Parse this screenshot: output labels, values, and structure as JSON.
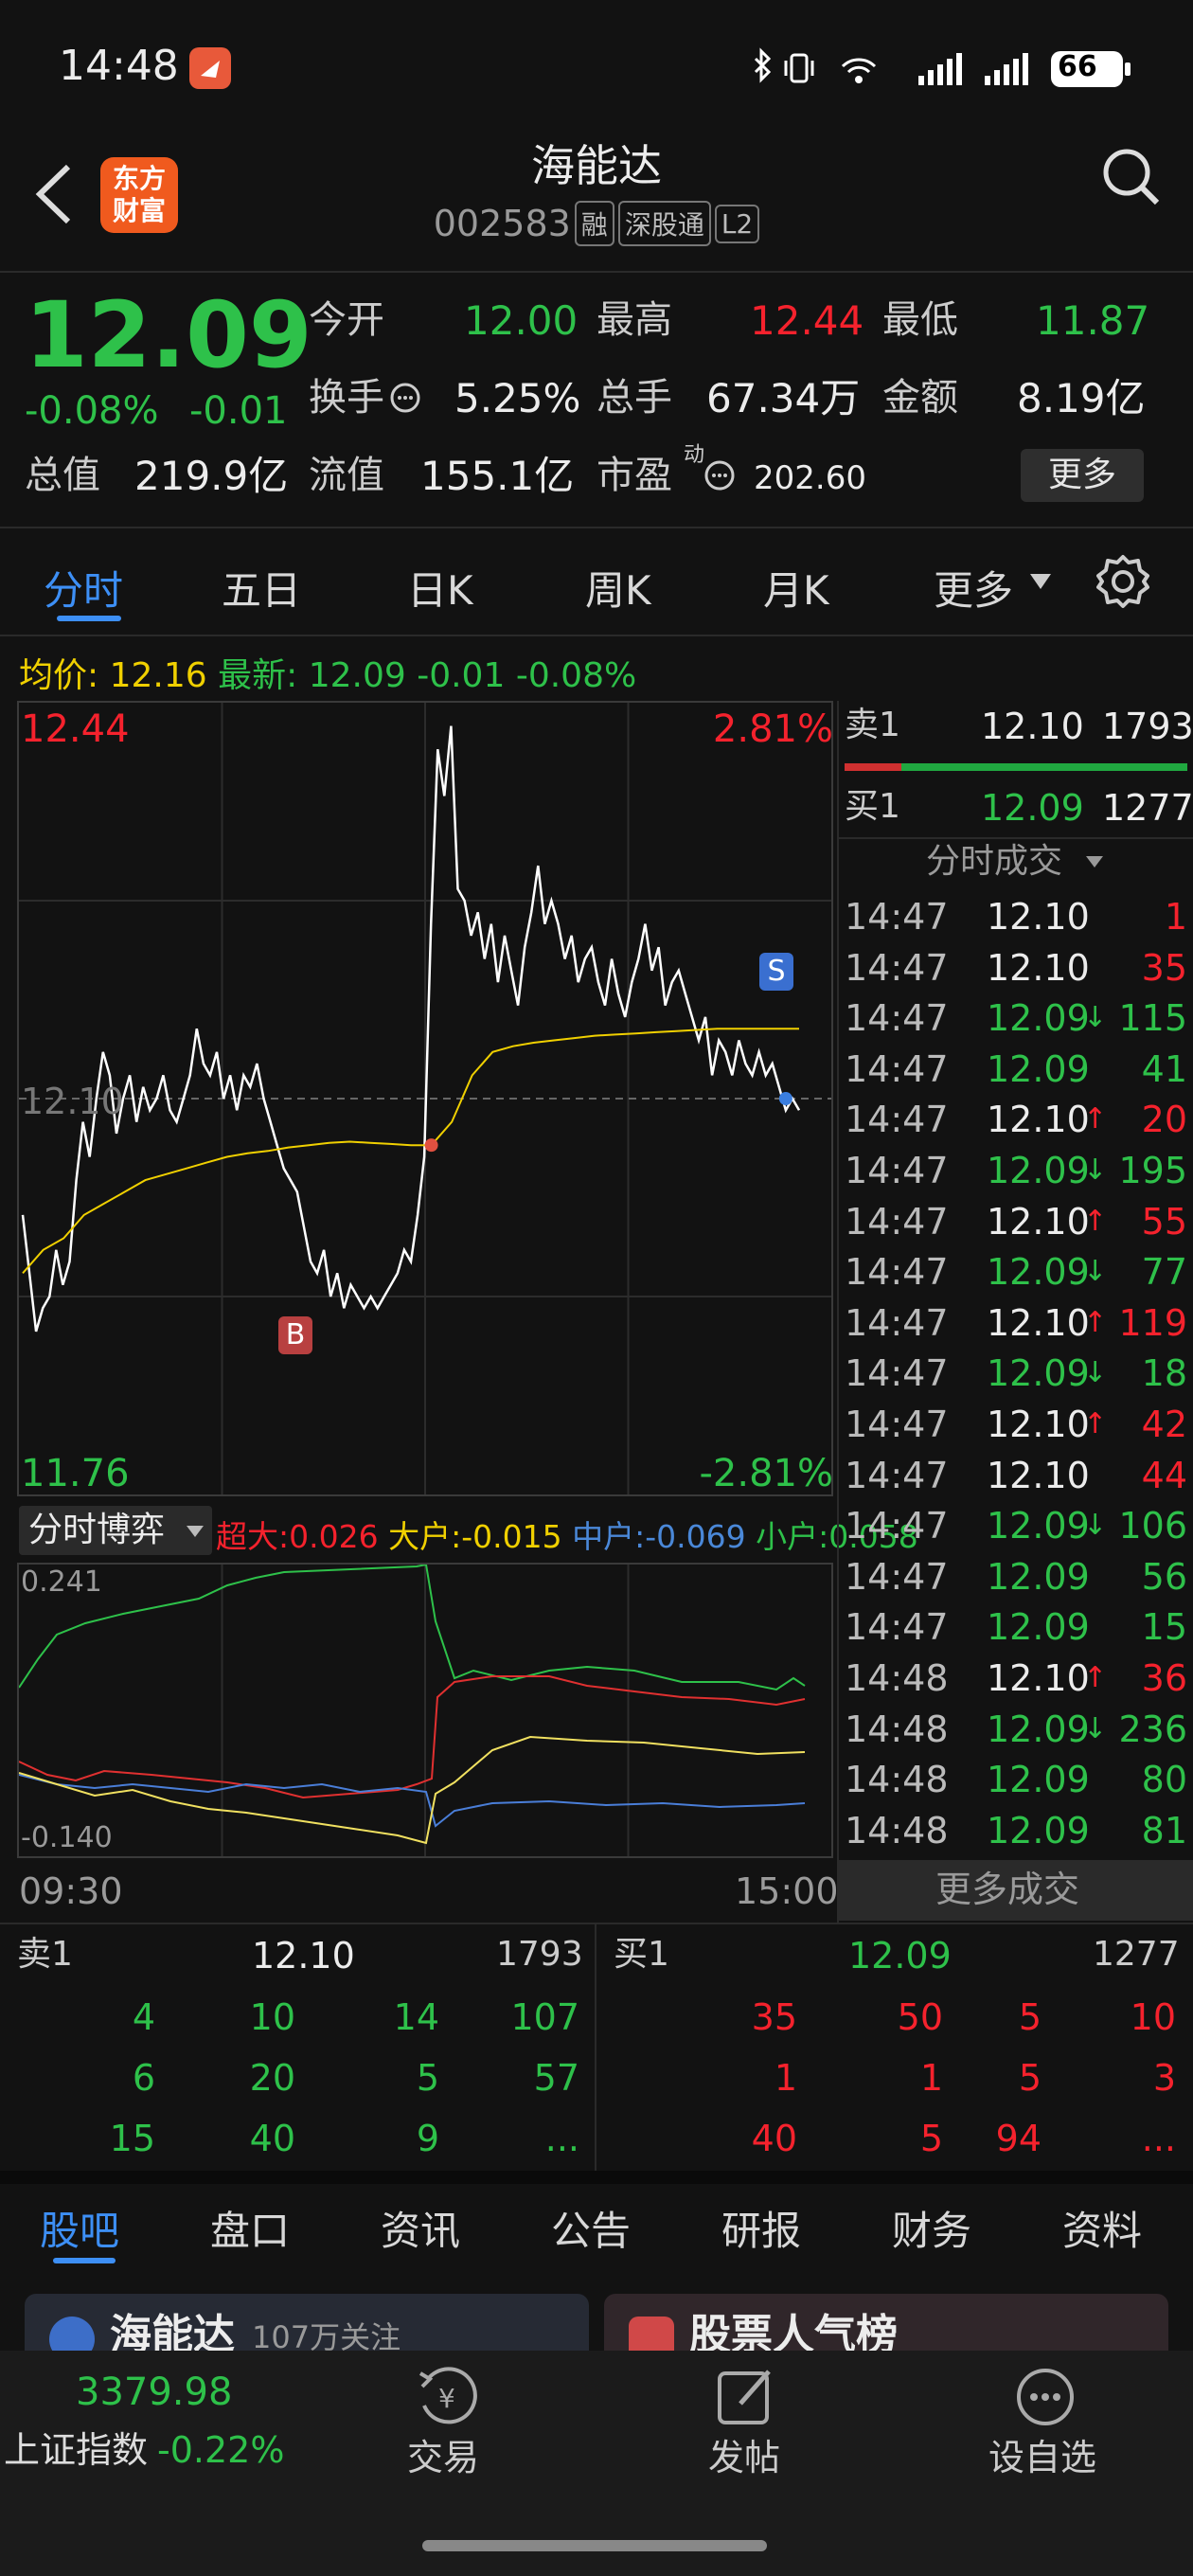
{
  "status_bar": {
    "time": "14:48",
    "battery": "66"
  },
  "header": {
    "title": "海能达",
    "code": "002583",
    "tags": [
      "融",
      "深股通",
      "L2"
    ]
  },
  "quote": {
    "price": "12.09",
    "change_pct": "-0.08%",
    "change": "-0.01",
    "open_label": "今开",
    "open": "12.00",
    "high_label": "最高",
    "high": "12.44",
    "low_label": "最低",
    "low": "11.87",
    "turnover_label": "换手",
    "turnover": "5.25%",
    "volume_label": "总手",
    "volume": "67.34万",
    "amount_label": "金额",
    "amount": "8.19亿",
    "mktcap_label": "总值",
    "mktcap": "219.9亿",
    "float_label": "流值",
    "float": "155.1亿",
    "pe_label": "市盈",
    "pe_sup": "动",
    "pe": "202.60",
    "more_button": "更多"
  },
  "chart_tabs": [
    "分时",
    "五日",
    "日K",
    "周K",
    "月K",
    "更多"
  ],
  "avg_line": {
    "avg_label": "均价:",
    "avg": "12.16",
    "latest_label": "最新:",
    "latest": "12.09",
    "chg": "-0.01",
    "pct": "-0.08%"
  },
  "chart_data": {
    "type": "line",
    "y_max_label": "12.44",
    "y_mid_label": "12.10",
    "y_min_label": "11.76",
    "pct_max_label": "2.81%",
    "pct_min_label": "-2.81%",
    "ylim": [
      11.76,
      12.44
    ],
    "x_start": "09:30",
    "x_end": "15:00",
    "markers": [
      "B",
      "S"
    ],
    "series": [
      {
        "values": [
          12.0,
          11.95,
          11.9,
          11.92,
          11.93,
          11.97,
          11.94,
          11.96,
          12.03,
          12.08,
          12.05,
          12.1,
          12.14,
          12.12,
          12.07,
          12.1,
          12.12,
          12.08,
          12.11,
          12.09,
          12.1,
          12.12,
          12.09,
          12.08,
          12.1,
          12.12,
          12.16,
          12.13,
          12.12,
          12.14,
          12.1,
          12.12,
          12.09,
          12.12,
          12.11,
          12.13,
          12.1,
          12.08,
          12.06,
          12.04,
          12.03,
          12.02,
          11.99,
          11.96,
          11.95,
          11.97,
          11.93,
          11.95,
          11.92,
          11.94,
          11.93,
          11.92,
          11.93,
          11.92,
          11.93,
          11.94,
          11.95,
          11.97,
          11.96,
          12.0,
          12.05,
          12.25,
          12.4,
          12.36,
          12.42,
          12.28,
          12.27,
          12.24,
          12.26,
          12.22,
          12.25,
          12.2,
          12.24,
          12.21,
          12.18,
          12.23,
          12.26,
          12.3,
          12.25,
          12.27,
          12.25,
          12.22,
          12.24,
          12.2,
          12.22,
          12.23,
          12.2,
          12.18,
          12.22,
          12.19,
          12.17,
          12.2,
          12.22,
          12.25,
          12.21,
          12.23,
          12.18,
          12.2,
          12.21,
          12.19,
          12.17,
          12.15,
          12.17,
          12.12,
          12.15,
          12.14,
          12.12,
          12.15,
          12.13,
          12.12,
          12.14,
          12.12,
          12.13,
          12.11,
          12.09,
          12.1,
          12.09
        ]
      },
      {
        "values": [
          11.95,
          11.97,
          11.98,
          12.0,
          12.01,
          12.02,
          12.03,
          12.035,
          12.04,
          12.045,
          12.05,
          12.053,
          12.055,
          12.058,
          12.06,
          12.062,
          12.063,
          12.062,
          12.061,
          12.06,
          12.06,
          12.08,
          12.12,
          12.14,
          12.145,
          12.148,
          12.15,
          12.152,
          12.154,
          12.155,
          12.156,
          12.157,
          12.158,
          12.159,
          12.16,
          12.16,
          12.16,
          12.16,
          12.16
        ]
      }
    ]
  },
  "trade_panel": {
    "ask1_label": "卖1",
    "ask1_price": "12.10",
    "ask1_vol": "1793",
    "bid1_label": "买1",
    "bid1_price": "12.09",
    "bid1_vol": "1277",
    "ticks_header": "分时成交",
    "ticks": [
      {
        "time": "14:47",
        "price": "12.10",
        "arrow": "",
        "vol": "1",
        "pc": "white",
        "vc": "red"
      },
      {
        "time": "14:47",
        "price": "12.10",
        "arrow": "",
        "vol": "35",
        "pc": "white",
        "vc": "red"
      },
      {
        "time": "14:47",
        "price": "12.09",
        "arrow": "↓",
        "vol": "115",
        "pc": "green",
        "vc": "green"
      },
      {
        "time": "14:47",
        "price": "12.09",
        "arrow": "",
        "vol": "41",
        "pc": "green",
        "vc": "green"
      },
      {
        "time": "14:47",
        "price": "12.10",
        "arrow": "↑",
        "vol": "20",
        "pc": "white",
        "vc": "red"
      },
      {
        "time": "14:47",
        "price": "12.09",
        "arrow": "↓",
        "vol": "195",
        "pc": "green",
        "vc": "green"
      },
      {
        "time": "14:47",
        "price": "12.10",
        "arrow": "↑",
        "vol": "55",
        "pc": "white",
        "vc": "red"
      },
      {
        "time": "14:47",
        "price": "12.09",
        "arrow": "↓",
        "vol": "77",
        "pc": "green",
        "vc": "green"
      },
      {
        "time": "14:47",
        "price": "12.10",
        "arrow": "↑",
        "vol": "119",
        "pc": "white",
        "vc": "red"
      },
      {
        "time": "14:47",
        "price": "12.09",
        "arrow": "↓",
        "vol": "18",
        "pc": "green",
        "vc": "green"
      },
      {
        "time": "14:47",
        "price": "12.10",
        "arrow": "↑",
        "vol": "42",
        "pc": "white",
        "vc": "red"
      },
      {
        "time": "14:47",
        "price": "12.10",
        "arrow": "",
        "vol": "44",
        "pc": "white",
        "vc": "red"
      },
      {
        "time": "14:47",
        "price": "12.09",
        "arrow": "↓",
        "vol": "106",
        "pc": "green",
        "vc": "green"
      },
      {
        "time": "14:47",
        "price": "12.09",
        "arrow": "",
        "vol": "56",
        "pc": "green",
        "vc": "green"
      },
      {
        "time": "14:47",
        "price": "12.09",
        "arrow": "",
        "vol": "15",
        "pc": "green",
        "vc": "green"
      },
      {
        "time": "14:48",
        "price": "12.10",
        "arrow": "↑",
        "vol": "36",
        "pc": "white",
        "vc": "red"
      },
      {
        "time": "14:48",
        "price": "12.09",
        "arrow": "↓",
        "vol": "236",
        "pc": "green",
        "vc": "green"
      },
      {
        "time": "14:48",
        "price": "12.09",
        "arrow": "",
        "vol": "80",
        "pc": "green",
        "vc": "green"
      },
      {
        "time": "14:48",
        "price": "12.09",
        "arrow": "",
        "vol": "81",
        "pc": "green",
        "vc": "green"
      }
    ],
    "more_trades": "更多成交"
  },
  "capital_flow": {
    "selector": "分时博弈",
    "super_label": "超大:",
    "super": "0.026",
    "large_label": "大户:",
    "large": "-0.015",
    "mid_label": "中户:",
    "mid": "-0.069",
    "small_label": "小户:",
    "small": "0.058",
    "y_max": "0.241",
    "y_min": "-0.140"
  },
  "orderbook": {
    "ask_label": "卖1",
    "ask_price": "12.10",
    "ask_vol": "1793",
    "bid_label": "买1",
    "bid_price": "12.09",
    "bid_vol": "1277",
    "ask_rows": [
      [
        "4",
        "10",
        "14",
        "107"
      ],
      [
        "6",
        "20",
        "5",
        "57"
      ],
      [
        "15",
        "40",
        "9",
        "..."
      ]
    ],
    "bid_rows": [
      [
        "35",
        "50",
        "5",
        "10"
      ],
      [
        "1",
        "1",
        "5",
        "3"
      ],
      [
        "40",
        "5",
        "94",
        "..."
      ]
    ]
  },
  "news_tabs": [
    "股吧",
    "盘口",
    "资讯",
    "公告",
    "研报",
    "财务",
    "资料"
  ],
  "cards": {
    "left_title": "海能达",
    "left_sub": "107万关注",
    "right_title": "股票人气榜"
  },
  "bottom_nav": {
    "index_value": "3379.98",
    "index_name": "上证指数",
    "index_chg": "-0.22%",
    "trade": "交易",
    "post": "发帖",
    "watch": "设自选"
  },
  "colors": {
    "up": "#f5222d",
    "down": "#2ec14a",
    "avg_line": "#f0d000",
    "accent": "#3d8ff5"
  }
}
